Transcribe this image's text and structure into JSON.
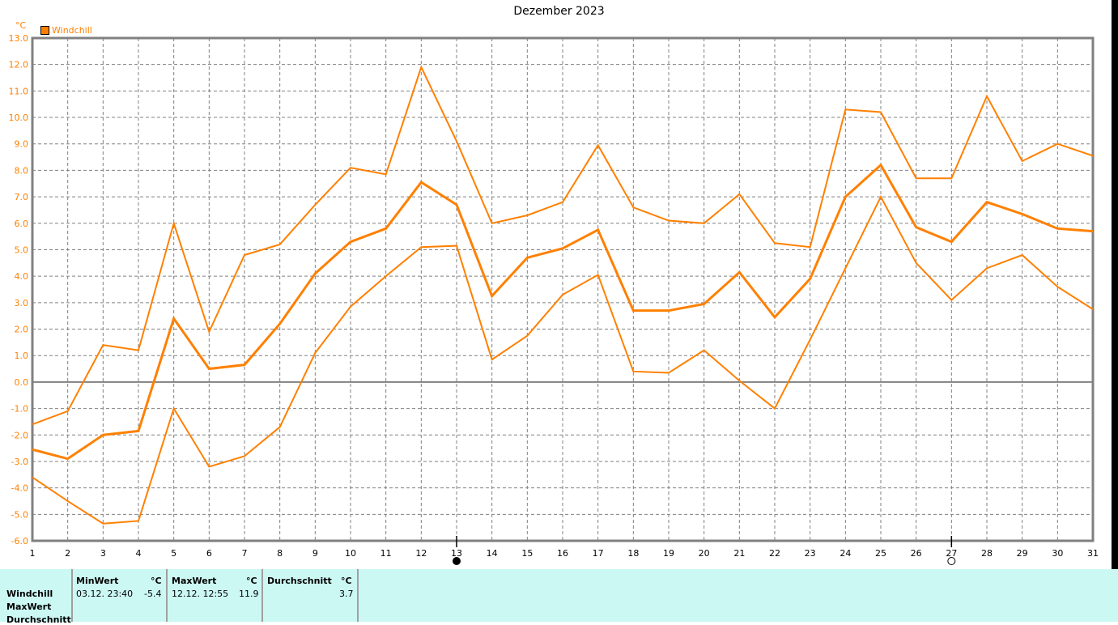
{
  "chart_data": {
    "type": "line",
    "title": "Dezember 2023",
    "ylabel": "°C",
    "legend": [
      "Windchill"
    ],
    "legend_position": "top-left",
    "ylim": [
      -6,
      13
    ],
    "yticks": [
      "-6.0",
      "-5.0",
      "-4.0",
      "-3.0",
      "-2.0",
      "-1.0",
      "0.0",
      "1.0",
      "2.0",
      "3.0",
      "4.0",
      "5.0",
      "6.0",
      "7.0",
      "8.0",
      "9.0",
      "10.0",
      "11.0",
      "12.0",
      "13.0"
    ],
    "x": [
      1,
      2,
      3,
      4,
      5,
      6,
      7,
      8,
      9,
      10,
      11,
      12,
      13,
      14,
      15,
      16,
      17,
      18,
      19,
      20,
      21,
      22,
      23,
      24,
      25,
      26,
      27,
      28,
      29,
      30,
      31
    ],
    "grid": true,
    "color": "#ff8000",
    "series": [
      {
        "name": "Windchill Max",
        "values": [
          -1.6,
          -1.1,
          1.4,
          1.2,
          6.0,
          1.9,
          4.8,
          5.2,
          6.7,
          8.1,
          7.85,
          11.9,
          9.1,
          6.0,
          6.3,
          6.8,
          8.95,
          6.6,
          6.1,
          6.0,
          7.1,
          5.25,
          5.1,
          10.3,
          10.2,
          7.7,
          7.7,
          10.8,
          8.35,
          9.0,
          8.55
        ]
      },
      {
        "name": "Windchill Durchschnitt",
        "values": [
          -2.55,
          -2.9,
          -2.0,
          -1.85,
          2.4,
          0.5,
          0.65,
          2.2,
          4.1,
          5.3,
          5.8,
          7.55,
          6.7,
          3.25,
          4.7,
          5.05,
          5.75,
          2.7,
          2.7,
          2.95,
          4.15,
          2.45,
          3.9,
          7.0,
          8.2,
          5.85,
          5.3,
          6.8,
          6.35,
          5.8,
          5.7
        ]
      },
      {
        "name": "Windchill Min",
        "values": [
          -3.6,
          -4.5,
          -5.35,
          -5.25,
          -1.0,
          -3.2,
          -2.8,
          -1.7,
          1.1,
          2.85,
          4.0,
          5.1,
          5.15,
          0.85,
          1.75,
          3.3,
          4.05,
          0.4,
          0.35,
          1.2,
          0.05,
          -1.0,
          1.6,
          4.3,
          7.0,
          4.5,
          3.1,
          4.3,
          4.8,
          3.6,
          2.75
        ]
      }
    ],
    "moon_phases": [
      {
        "day": 13,
        "phase": "new-moon"
      },
      {
        "day": 27,
        "phase": "full-moon"
      }
    ]
  },
  "table": {
    "row_labels": [
      "Windchill",
      "MaxWert",
      "Durchschnitt"
    ],
    "min": {
      "header": "MinWert",
      "unit": "°C",
      "time": "03.12.  23:40",
      "value": "-5.4"
    },
    "max": {
      "header": "MaxWert",
      "unit": "°C",
      "time": "12.12.  12:55",
      "value": "11.9"
    },
    "avg": {
      "header": "Durchschnitt",
      "unit": "°C",
      "value": "3.7"
    }
  }
}
